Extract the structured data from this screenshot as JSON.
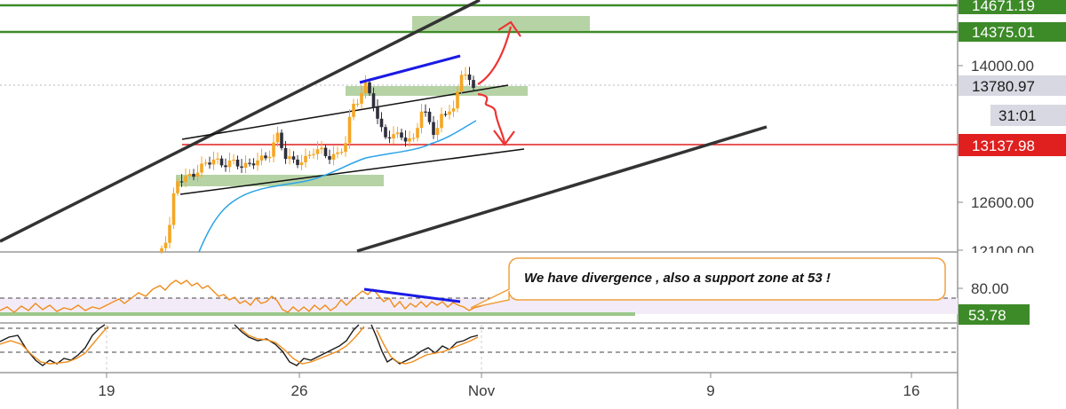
{
  "chart_data": {
    "type": "candlestick",
    "price_axis": {
      "ticks": [
        "14000.00",
        "12600.00",
        "12100.00"
      ],
      "labels": {
        "level_14671": "14671.19",
        "level_14375": "14375.01",
        "current_price": "13780.97",
        "countdown": "31:01",
        "red_level": "13137.98"
      }
    },
    "oscillator_axis": {
      "ticks": [
        "80.00"
      ],
      "value_label": "53.78"
    },
    "x_axis": {
      "ticks": [
        "19",
        "26",
        "Nov",
        "9",
        "16"
      ]
    },
    "annotation": "We have divergence  , also a support zone at 53 !",
    "colors": {
      "up": "#f5a623",
      "down": "#2e2e3c",
      "green_level": "#3d8a28",
      "zone": "#a9cb96",
      "red_level": "#e01f1f",
      "arrow": "#ee3333",
      "divergence": "#1a1ae6",
      "ma": "#2aa3e6",
      "stoch_k": "#1a1a1a",
      "stoch_d": "#f08c1a",
      "callout_border": "#f0a040"
    }
  }
}
